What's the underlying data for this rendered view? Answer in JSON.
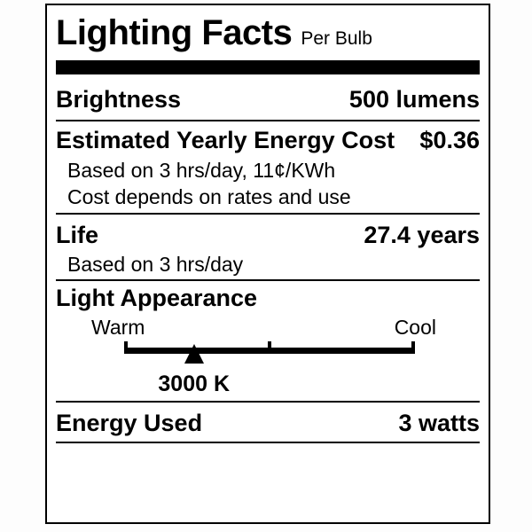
{
  "label": {
    "title": "Lighting Facts",
    "per_unit": "Per Bulb",
    "ink_color": "#000000",
    "paper_color": "#ffffff",
    "brightness": {
      "label": "Brightness",
      "value": "500 lumens"
    },
    "energy_cost": {
      "label": "Estimated Yearly Energy Cost",
      "value": "$0.36",
      "note_1": "Based on 3 hrs/day, 11¢/KWh",
      "note_2": "Cost depends on rates and use"
    },
    "life": {
      "label": "Life",
      "value": "27.4 years",
      "note": "Based on 3 hrs/day"
    },
    "light_appearance": {
      "label": "Light Appearance",
      "warm_label": "Warm",
      "cool_label": "Cool",
      "temperature": "3000 K",
      "marker_position_pct": 24
    },
    "energy_used": {
      "label": "Energy Used",
      "value": "3 watts"
    }
  }
}
